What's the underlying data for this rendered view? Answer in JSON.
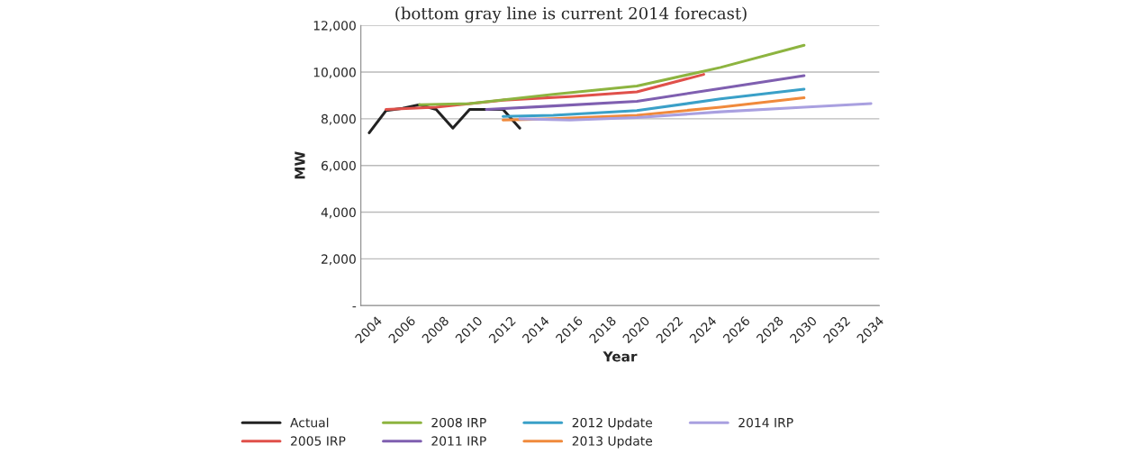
{
  "chart_data": {
    "type": "line",
    "title": "(bottom gray line is current 2014 forecast)",
    "xlabel": "Year",
    "ylabel": "MW",
    "xlim": [
      2003.5,
      2034.5
    ],
    "xticks": [
      2004,
      2006,
      2008,
      2010,
      2012,
      2014,
      2016,
      2018,
      2020,
      2022,
      2024,
      2026,
      2028,
      2030,
      2032,
      2034
    ],
    "ylim": [
      0,
      12000
    ],
    "yticks": [
      {
        "value": 0,
        "label": "-"
      },
      {
        "value": 2000,
        "label": "2,000"
      },
      {
        "value": 4000,
        "label": "4,000"
      },
      {
        "value": 6000,
        "label": "6,000"
      },
      {
        "value": 8000,
        "label": "8,000"
      },
      {
        "value": 10000,
        "label": "10,000"
      },
      {
        "value": 12000,
        "label": "12,000"
      }
    ],
    "grid": "y",
    "legend": "bottom",
    "marker": "none",
    "line_style": "solid",
    "series": [
      {
        "name": "Actual",
        "color": "#222222",
        "x": [
          2004,
          2005,
          2006,
          2007,
          2008,
          2009,
          2010,
          2011,
          2012,
          2013
        ],
        "values": [
          7400,
          8350,
          8450,
          8600,
          8400,
          7600,
          8400,
          8400,
          8400,
          7600
        ]
      },
      {
        "name": "2005 IRP",
        "color": "#e0504a",
        "x": [
          2005,
          2008,
          2012,
          2016,
          2020,
          2024
        ],
        "values": [
          8400,
          8500,
          8800,
          8950,
          9150,
          9900
        ]
      },
      {
        "name": "2008 IRP",
        "color": "#8db440",
        "x": [
          2007,
          2010,
          2015,
          2020,
          2025,
          2030
        ],
        "values": [
          8600,
          8650,
          9050,
          9400,
          10200,
          11150
        ]
      },
      {
        "name": "2011 IRP",
        "color": "#7f5fb0",
        "x": [
          2011,
          2015,
          2020,
          2025,
          2030
        ],
        "values": [
          8400,
          8550,
          8750,
          9300,
          9850
        ]
      },
      {
        "name": "2012 Update",
        "color": "#3aa0c8",
        "x": [
          2012,
          2015,
          2020,
          2025,
          2030
        ],
        "values": [
          8100,
          8150,
          8350,
          8850,
          9270
        ]
      },
      {
        "name": "2013 Update",
        "color": "#f08a3c",
        "x": [
          2012,
          2015,
          2020,
          2025,
          2030
        ],
        "values": [
          7950,
          8000,
          8150,
          8500,
          8900
        ]
      },
      {
        "name": "2014 IRP",
        "color": "#a9a0e0",
        "x": [
          2013,
          2016,
          2020,
          2025,
          2030,
          2034
        ],
        "values": [
          8000,
          7950,
          8050,
          8300,
          8500,
          8650
        ]
      }
    ]
  }
}
